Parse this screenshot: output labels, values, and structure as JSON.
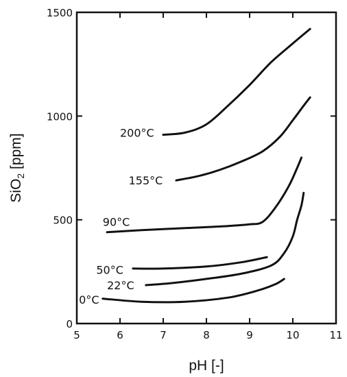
{
  "chart_data": {
    "type": "line",
    "title": "",
    "xlabel": "pH [-]",
    "ylabel_main": "SiO",
    "ylabel_sub": "2",
    "ylabel_tail": " [ppm]",
    "xlim": [
      5,
      11
    ],
    "ylim": [
      0,
      1500
    ],
    "x_ticks": [
      5,
      6,
      7,
      8,
      9,
      10,
      11
    ],
    "y_ticks": [
      0,
      500,
      1000,
      1500
    ],
    "grid": false,
    "legend": "none",
    "series": [
      {
        "name": "200°C",
        "label_at": [
          6.0,
          920
        ],
        "points": [
          [
            7.0,
            910
          ],
          [
            7.5,
            920
          ],
          [
            8.0,
            960
          ],
          [
            8.5,
            1050
          ],
          [
            9.0,
            1150
          ],
          [
            9.5,
            1260
          ],
          [
            10.0,
            1350
          ],
          [
            10.4,
            1420
          ]
        ]
      },
      {
        "name": "155°C",
        "label_at": [
          6.2,
          690
        ],
        "points": [
          [
            7.3,
            690
          ],
          [
            7.8,
            710
          ],
          [
            8.3,
            740
          ],
          [
            8.8,
            780
          ],
          [
            9.3,
            830
          ],
          [
            9.7,
            900
          ],
          [
            10.0,
            980
          ],
          [
            10.25,
            1050
          ],
          [
            10.4,
            1090
          ]
        ]
      },
      {
        "name": "90°C",
        "label_at": [
          5.6,
          490
        ],
        "points": [
          [
            5.7,
            440
          ],
          [
            6.5,
            450
          ],
          [
            7.5,
            460
          ],
          [
            8.5,
            470
          ],
          [
            9.0,
            478
          ],
          [
            9.3,
            490
          ],
          [
            9.6,
            560
          ],
          [
            9.9,
            660
          ],
          [
            10.1,
            750
          ],
          [
            10.2,
            800
          ]
        ]
      },
      {
        "name": "50°C",
        "label_at": [
          5.45,
          260
        ],
        "points": [
          [
            6.3,
            265
          ],
          [
            7.0,
            265
          ],
          [
            8.0,
            275
          ],
          [
            8.8,
            295
          ],
          [
            9.4,
            320
          ]
        ]
      },
      {
        "name": "22°C",
        "label_at": [
          5.7,
          185
        ],
        "points": [
          [
            6.6,
            185
          ],
          [
            7.2,
            195
          ],
          [
            8.0,
            215
          ],
          [
            8.8,
            240
          ],
          [
            9.5,
            280
          ],
          [
            9.8,
            340
          ],
          [
            10.0,
            420
          ],
          [
            10.1,
            500
          ],
          [
            10.2,
            570
          ],
          [
            10.25,
            630
          ]
        ]
      },
      {
        "name": "0°C",
        "label_at": [
          5.05,
          115
        ],
        "points": [
          [
            5.6,
            120
          ],
          [
            6.5,
            105
          ],
          [
            7.5,
            105
          ],
          [
            8.5,
            125
          ],
          [
            9.2,
            160
          ],
          [
            9.6,
            190
          ],
          [
            9.8,
            215
          ]
        ]
      }
    ]
  }
}
